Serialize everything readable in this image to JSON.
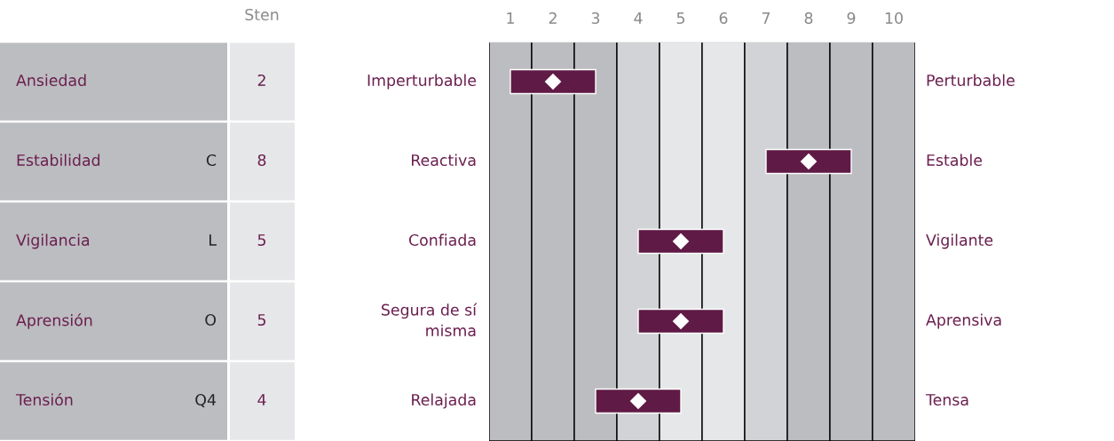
{
  "chart_data": {
    "type": "bar",
    "orientation": "horizontal",
    "legend": false,
    "categories": [
      "Ansiedad",
      "Estabilidad",
      "Vigilancia",
      "Aprensión",
      "Tensión"
    ],
    "series": [
      {
        "type": "bar",
        "axis": "x2",
        "color": "#5f1a45",
        "base": [
          1,
          7,
          4,
          4,
          3
        ],
        "values": [
          2,
          2,
          2,
          2,
          2
        ]
      },
      {
        "type": "scatter",
        "axis": "x2",
        "marker": "diamond",
        "color": "#ffffff",
        "values": [
          2,
          8,
          5,
          5,
          4
        ]
      }
    ],
    "x2lim": [
      0.5,
      10.5
    ],
    "x2ticks": [
      1,
      2,
      3,
      4,
      5,
      6,
      7,
      8,
      9,
      10
    ],
    "bands": [
      {
        "axis": "x2",
        "from": 0.5,
        "to": 1.5,
        "color": "#bcbdc1"
      },
      {
        "axis": "x2",
        "from": 1.5,
        "to": 2.5,
        "color": "#bcbdc1"
      },
      {
        "axis": "x2",
        "from": 2.5,
        "to": 3.5,
        "color": "#bcbdc1"
      },
      {
        "axis": "x2",
        "from": 3.5,
        "to": 4.5,
        "color": "#d2d3d6"
      },
      {
        "axis": "x2",
        "from": 4.5,
        "to": 5.5,
        "color": "#e6e7e9"
      },
      {
        "axis": "x2",
        "from": 5.5,
        "to": 6.5,
        "color": "#e6e7e9"
      },
      {
        "axis": "x2",
        "from": 6.5,
        "to": 7.5,
        "color": "#d2d3d6"
      },
      {
        "axis": "x2",
        "from": 7.5,
        "to": 8.5,
        "color": "#bcbdc1"
      },
      {
        "axis": "x2",
        "from": 8.5,
        "to": 9.5,
        "color": "#bcbdc1"
      },
      {
        "axis": "x2",
        "from": 9.5,
        "to": 10.5,
        "color": "#bcbdc1"
      }
    ],
    "annotations": [
      "Sten",
      "Imperturbable",
      "Reactiva",
      "Confiada",
      "Segura de sí\nmisma",
      "Relajada",
      "Perturbable",
      "Estable",
      "Vigilante",
      "Aprensiva",
      "Tensa",
      "2",
      "8",
      "5",
      "5",
      "4",
      "C",
      "L",
      "O",
      "Q4"
    ]
  }
}
